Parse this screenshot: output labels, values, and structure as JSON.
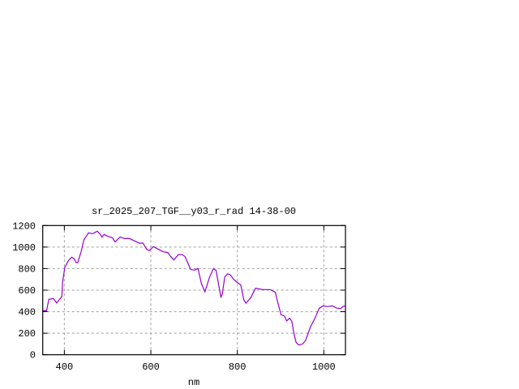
{
  "chart_data": {
    "type": "line",
    "title": "sr_2025_207_TGF__y03_r_rad 14-38-00",
    "xlabel": "nm",
    "ylabel": "",
    "xlim": [
      350,
      1050
    ],
    "ylim": [
      0,
      1200
    ],
    "xticks": [
      400,
      600,
      800,
      1000
    ],
    "yticks": [
      0,
      200,
      400,
      600,
      800,
      1000,
      1200
    ],
    "grid": true,
    "legend": "none",
    "line_color": "#9400d3",
    "series": [
      {
        "x": [
          350,
          359,
          364,
          375,
          382,
          394,
          396,
          401,
          409,
          417,
          423,
          427,
          431,
          439,
          445,
          456,
          465,
          476,
          482,
          487,
          492,
          501,
          511,
          517,
          529,
          539,
          551,
          564,
          573,
          582,
          590,
          596,
          606,
          620,
          629,
          639,
          646,
          653,
          664,
          673,
          679,
          686,
          692,
          701,
          709,
          717,
          725,
          736,
          745,
          751,
          758,
          762,
          765,
          771,
          778,
          784,
          792,
          801,
          808,
          815,
          820,
          831,
          842,
          846,
          858,
          876,
          888,
          892,
          901,
          909,
          914,
          921,
          926,
          931,
          936,
          942,
          951,
          958,
          969,
          979,
          989,
          998,
          1008,
          1020,
          1029,
          1039,
          1044,
          1050
        ],
        "values": [
          409,
          409,
          515,
          522,
          480,
          540,
          673,
          811,
          873,
          906,
          891,
          856,
          856,
          961,
          1067,
          1132,
          1124,
          1147,
          1124,
          1092,
          1117,
          1099,
          1087,
          1049,
          1094,
          1079,
          1079,
          1054,
          1037,
          1037,
          981,
          966,
          1004,
          974,
          956,
          949,
          911,
          881,
          931,
          929,
          911,
          848,
          791,
          786,
          801,
          660,
          585,
          723,
          801,
          781,
          622,
          535,
          560,
          723,
          753,
          740,
          698,
          668,
          648,
          510,
          479,
          530,
          617,
          615,
          605,
          605,
          580,
          510,
          372,
          359,
          314,
          339,
          309,
          196,
          113,
          90,
          100,
          133,
          259,
          334,
          429,
          454,
          447,
          454,
          434,
          429,
          447,
          454
        ]
      }
    ]
  }
}
